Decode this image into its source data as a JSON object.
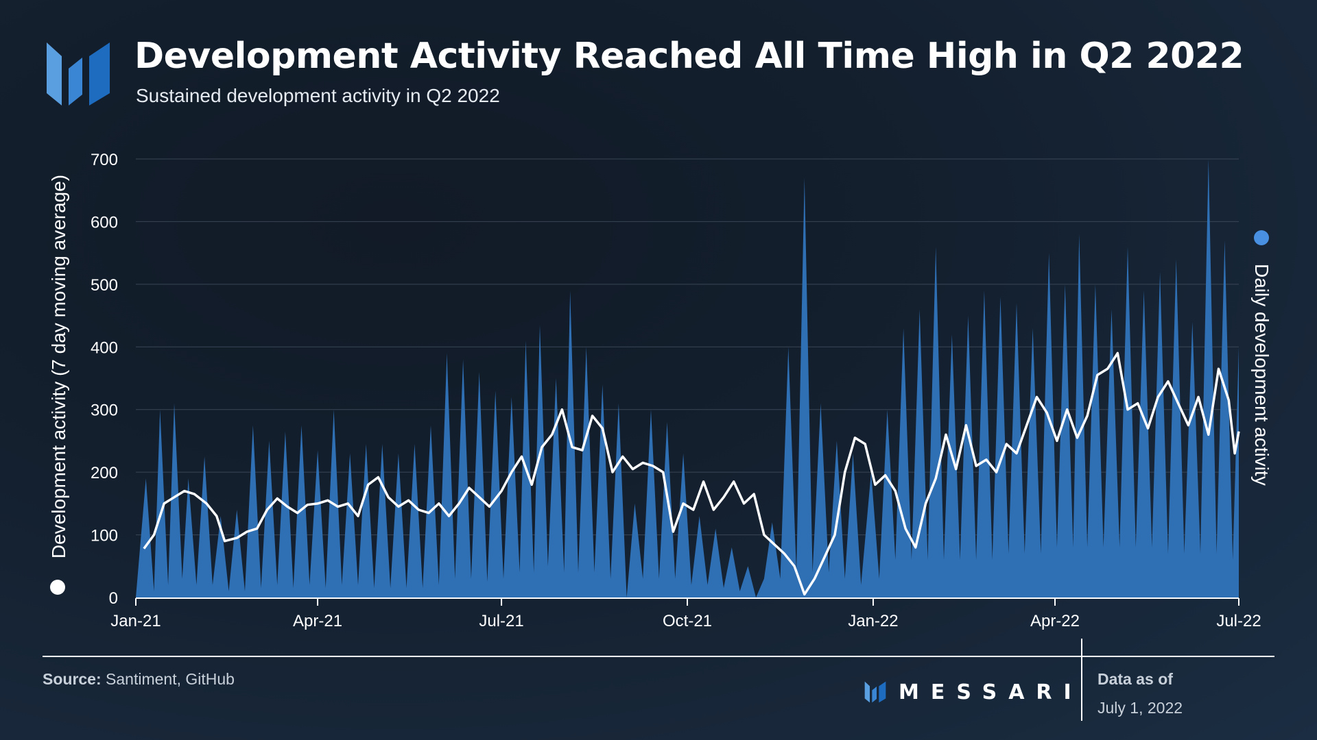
{
  "header": {
    "title": "Development Activity Reached All Time High in Q2 2022",
    "subtitle": "Sustained development activity in Q2 2022"
  },
  "footer": {
    "source_label": "Source:",
    "source_text": "Santiment, GitHub",
    "brand": "MESSARI",
    "data_as_of_label": "Data as of",
    "data_as_of_date": "July 1, 2022"
  },
  "colors": {
    "area": "#2f6fb4",
    "line": "#ffffff",
    "left_legend_dot": "#ffffff",
    "right_legend_dot": "#4a90e2"
  },
  "chart_data": {
    "type": "area",
    "ylabel_left": "Development activity (7 day moving average)",
    "ylabel_right": "Daily development activity",
    "ylim": [
      0,
      700
    ],
    "yticks": [
      0,
      100,
      200,
      300,
      400,
      500,
      600,
      700
    ],
    "x_range": [
      "2021-01-01",
      "2022-07-01"
    ],
    "xticks": [
      {
        "date": "2021-01-01",
        "label": "Jan-21"
      },
      {
        "date": "2021-04-01",
        "label": "Apr-21"
      },
      {
        "date": "2021-07-01",
        "label": "Jul-21"
      },
      {
        "date": "2021-10-01",
        "label": "Oct-21"
      },
      {
        "date": "2022-01-01",
        "label": "Jan-22"
      },
      {
        "date": "2022-04-01",
        "label": "Apr-22"
      },
      {
        "date": "2022-07-01",
        "label": "Jul-22"
      }
    ],
    "grid": true,
    "series": [
      {
        "name": "Daily development activity",
        "type": "area",
        "axis": "right",
        "points": [
          [
            "2021-01-01",
            0
          ],
          [
            "2021-01-06",
            190
          ],
          [
            "2021-01-10",
            10
          ],
          [
            "2021-01-13",
            300
          ],
          [
            "2021-01-17",
            20
          ],
          [
            "2021-01-20",
            310
          ],
          [
            "2021-01-24",
            30
          ],
          [
            "2021-01-27",
            190
          ],
          [
            "2021-01-31",
            20
          ],
          [
            "2021-02-04",
            225
          ],
          [
            "2021-02-08",
            20
          ],
          [
            "2021-02-12",
            130
          ],
          [
            "2021-02-16",
            10
          ],
          [
            "2021-02-20",
            140
          ],
          [
            "2021-02-24",
            10
          ],
          [
            "2021-02-28",
            275
          ],
          [
            "2021-03-04",
            15
          ],
          [
            "2021-03-08",
            250
          ],
          [
            "2021-03-12",
            20
          ],
          [
            "2021-03-16",
            265
          ],
          [
            "2021-03-20",
            15
          ],
          [
            "2021-03-24",
            275
          ],
          [
            "2021-03-28",
            20
          ],
          [
            "2021-04-01",
            235
          ],
          [
            "2021-04-05",
            15
          ],
          [
            "2021-04-09",
            300
          ],
          [
            "2021-04-13",
            20
          ],
          [
            "2021-04-17",
            230
          ],
          [
            "2021-04-21",
            20
          ],
          [
            "2021-04-25",
            245
          ],
          [
            "2021-04-29",
            15
          ],
          [
            "2021-05-03",
            245
          ],
          [
            "2021-05-07",
            15
          ],
          [
            "2021-05-11",
            230
          ],
          [
            "2021-05-15",
            15
          ],
          [
            "2021-05-19",
            245
          ],
          [
            "2021-05-23",
            15
          ],
          [
            "2021-05-27",
            275
          ],
          [
            "2021-05-31",
            20
          ],
          [
            "2021-06-04",
            390
          ],
          [
            "2021-06-08",
            30
          ],
          [
            "2021-06-12",
            380
          ],
          [
            "2021-06-16",
            30
          ],
          [
            "2021-06-20",
            360
          ],
          [
            "2021-06-24",
            25
          ],
          [
            "2021-06-28",
            330
          ],
          [
            "2021-07-02",
            30
          ],
          [
            "2021-07-06",
            320
          ],
          [
            "2021-07-10",
            40
          ],
          [
            "2021-07-13",
            410
          ],
          [
            "2021-07-17",
            40
          ],
          [
            "2021-07-20",
            435
          ],
          [
            "2021-07-24",
            50
          ],
          [
            "2021-07-28",
            350
          ],
          [
            "2021-08-01",
            40
          ],
          [
            "2021-08-04",
            490
          ],
          [
            "2021-08-08",
            40
          ],
          [
            "2021-08-12",
            400
          ],
          [
            "2021-08-16",
            40
          ],
          [
            "2021-08-20",
            340
          ],
          [
            "2021-08-24",
            30
          ],
          [
            "2021-08-28",
            310
          ],
          [
            "2021-09-01",
            0
          ],
          [
            "2021-09-05",
            150
          ],
          [
            "2021-09-09",
            30
          ],
          [
            "2021-09-13",
            300
          ],
          [
            "2021-09-17",
            30
          ],
          [
            "2021-09-21",
            280
          ],
          [
            "2021-09-25",
            30
          ],
          [
            "2021-09-29",
            230
          ],
          [
            "2021-10-03",
            20
          ],
          [
            "2021-10-07",
            130
          ],
          [
            "2021-10-11",
            20
          ],
          [
            "2021-10-15",
            110
          ],
          [
            "2021-10-19",
            15
          ],
          [
            "2021-10-23",
            80
          ],
          [
            "2021-10-27",
            10
          ],
          [
            "2021-10-31",
            50
          ],
          [
            "2021-11-04",
            0
          ],
          [
            "2021-11-08",
            30
          ],
          [
            "2021-11-12",
            120
          ],
          [
            "2021-11-16",
            30
          ],
          [
            "2021-11-20",
            400
          ],
          [
            "2021-11-24",
            40
          ],
          [
            "2021-11-28",
            670
          ],
          [
            "2021-12-02",
            40
          ],
          [
            "2021-12-06",
            310
          ],
          [
            "2021-12-10",
            40
          ],
          [
            "2021-12-14",
            250
          ],
          [
            "2021-12-18",
            30
          ],
          [
            "2021-12-22",
            230
          ],
          [
            "2021-12-26",
            20
          ],
          [
            "2021-12-31",
            200
          ],
          [
            "2022-01-04",
            30
          ],
          [
            "2022-01-08",
            300
          ],
          [
            "2022-01-12",
            60
          ],
          [
            "2022-01-16",
            430
          ],
          [
            "2022-01-20",
            60
          ],
          [
            "2022-01-24",
            460
          ],
          [
            "2022-01-28",
            60
          ],
          [
            "2022-02-01",
            560
          ],
          [
            "2022-02-05",
            60
          ],
          [
            "2022-02-09",
            420
          ],
          [
            "2022-02-13",
            60
          ],
          [
            "2022-02-17",
            450
          ],
          [
            "2022-02-21",
            60
          ],
          [
            "2022-02-25",
            490
          ],
          [
            "2022-03-01",
            60
          ],
          [
            "2022-03-05",
            480
          ],
          [
            "2022-03-09",
            70
          ],
          [
            "2022-03-13",
            470
          ],
          [
            "2022-03-17",
            70
          ],
          [
            "2022-03-21",
            430
          ],
          [
            "2022-03-25",
            70
          ],
          [
            "2022-03-29",
            550
          ],
          [
            "2022-04-02",
            80
          ],
          [
            "2022-04-06",
            500
          ],
          [
            "2022-04-10",
            80
          ],
          [
            "2022-04-13",
            580
          ],
          [
            "2022-04-17",
            80
          ],
          [
            "2022-04-21",
            500
          ],
          [
            "2022-04-25",
            80
          ],
          [
            "2022-04-29",
            460
          ],
          [
            "2022-05-03",
            80
          ],
          [
            "2022-05-07",
            560
          ],
          [
            "2022-05-11",
            80
          ],
          [
            "2022-05-15",
            490
          ],
          [
            "2022-05-19",
            80
          ],
          [
            "2022-05-23",
            520
          ],
          [
            "2022-05-27",
            70
          ],
          [
            "2022-05-31",
            540
          ],
          [
            "2022-06-04",
            70
          ],
          [
            "2022-06-08",
            440
          ],
          [
            "2022-06-12",
            70
          ],
          [
            "2022-06-16",
            700
          ],
          [
            "2022-06-20",
            70
          ],
          [
            "2022-06-24",
            570
          ],
          [
            "2022-06-28",
            60
          ],
          [
            "2022-07-01",
            400
          ]
        ]
      },
      {
        "name": "Development activity (7 day moving average)",
        "type": "line",
        "axis": "left",
        "points": [
          [
            "2021-01-05",
            78
          ],
          [
            "2021-01-10",
            100
          ],
          [
            "2021-01-15",
            150
          ],
          [
            "2021-01-20",
            160
          ],
          [
            "2021-01-25",
            170
          ],
          [
            "2021-01-30",
            165
          ],
          [
            "2021-02-05",
            150
          ],
          [
            "2021-02-10",
            130
          ],
          [
            "2021-02-14",
            90
          ],
          [
            "2021-02-20",
            95
          ],
          [
            "2021-02-25",
            105
          ],
          [
            "2021-03-02",
            110
          ],
          [
            "2021-03-07",
            140
          ],
          [
            "2021-03-12",
            158
          ],
          [
            "2021-03-17",
            145
          ],
          [
            "2021-03-22",
            135
          ],
          [
            "2021-03-27",
            148
          ],
          [
            "2021-04-01",
            150
          ],
          [
            "2021-04-06",
            155
          ],
          [
            "2021-04-11",
            145
          ],
          [
            "2021-04-16",
            150
          ],
          [
            "2021-04-21",
            130
          ],
          [
            "2021-04-26",
            180
          ],
          [
            "2021-05-01",
            192
          ],
          [
            "2021-05-06",
            160
          ],
          [
            "2021-05-11",
            145
          ],
          [
            "2021-05-16",
            155
          ],
          [
            "2021-05-21",
            140
          ],
          [
            "2021-05-26",
            135
          ],
          [
            "2021-05-31",
            150
          ],
          [
            "2021-06-05",
            130
          ],
          [
            "2021-06-10",
            150
          ],
          [
            "2021-06-15",
            175
          ],
          [
            "2021-06-20",
            160
          ],
          [
            "2021-06-25",
            145
          ],
          [
            "2021-07-01",
            170
          ],
          [
            "2021-07-06",
            200
          ],
          [
            "2021-07-11",
            225
          ],
          [
            "2021-07-16",
            180
          ],
          [
            "2021-07-21",
            240
          ],
          [
            "2021-07-26",
            260
          ],
          [
            "2021-07-31",
            300
          ],
          [
            "2021-08-05",
            240
          ],
          [
            "2021-08-10",
            235
          ],
          [
            "2021-08-15",
            290
          ],
          [
            "2021-08-20",
            270
          ],
          [
            "2021-08-25",
            200
          ],
          [
            "2021-08-30",
            225
          ],
          [
            "2021-09-04",
            205
          ],
          [
            "2021-09-09",
            215
          ],
          [
            "2021-09-14",
            210
          ],
          [
            "2021-09-19",
            200
          ],
          [
            "2021-09-24",
            105
          ],
          [
            "2021-09-29",
            150
          ],
          [
            "2021-10-04",
            140
          ],
          [
            "2021-10-09",
            185
          ],
          [
            "2021-10-14",
            140
          ],
          [
            "2021-10-19",
            160
          ],
          [
            "2021-10-24",
            185
          ],
          [
            "2021-10-29",
            150
          ],
          [
            "2021-11-03",
            165
          ],
          [
            "2021-11-08",
            100
          ],
          [
            "2021-11-13",
            85
          ],
          [
            "2021-11-18",
            70
          ],
          [
            "2021-11-23",
            50
          ],
          [
            "2021-11-28",
            5
          ],
          [
            "2021-12-03",
            30
          ],
          [
            "2021-12-08",
            65
          ],
          [
            "2021-12-13",
            100
          ],
          [
            "2021-12-18",
            200
          ],
          [
            "2021-12-23",
            255
          ],
          [
            "2021-12-28",
            245
          ],
          [
            "2022-01-02",
            180
          ],
          [
            "2022-01-07",
            195
          ],
          [
            "2022-01-12",
            170
          ],
          [
            "2022-01-17",
            110
          ],
          [
            "2022-01-22",
            80
          ],
          [
            "2022-01-27",
            150
          ],
          [
            "2022-02-01",
            190
          ],
          [
            "2022-02-06",
            260
          ],
          [
            "2022-02-11",
            205
          ],
          [
            "2022-02-16",
            275
          ],
          [
            "2022-02-21",
            210
          ],
          [
            "2022-02-26",
            220
          ],
          [
            "2022-03-03",
            200
          ],
          [
            "2022-03-08",
            245
          ],
          [
            "2022-03-13",
            230
          ],
          [
            "2022-03-18",
            275
          ],
          [
            "2022-03-23",
            320
          ],
          [
            "2022-03-28",
            295
          ],
          [
            "2022-04-02",
            250
          ],
          [
            "2022-04-07",
            300
          ],
          [
            "2022-04-12",
            255
          ],
          [
            "2022-04-17",
            290
          ],
          [
            "2022-04-22",
            355
          ],
          [
            "2022-04-27",
            365
          ],
          [
            "2022-05-02",
            390
          ],
          [
            "2022-05-07",
            300
          ],
          [
            "2022-05-12",
            310
          ],
          [
            "2022-05-17",
            270
          ],
          [
            "2022-05-22",
            320
          ],
          [
            "2022-05-27",
            345
          ],
          [
            "2022-06-01",
            310
          ],
          [
            "2022-06-06",
            275
          ],
          [
            "2022-06-11",
            320
          ],
          [
            "2022-06-16",
            260
          ],
          [
            "2022-06-21",
            365
          ],
          [
            "2022-06-26",
            315
          ],
          [
            "2022-06-29",
            230
          ],
          [
            "2022-07-01",
            265
          ]
        ]
      }
    ]
  }
}
